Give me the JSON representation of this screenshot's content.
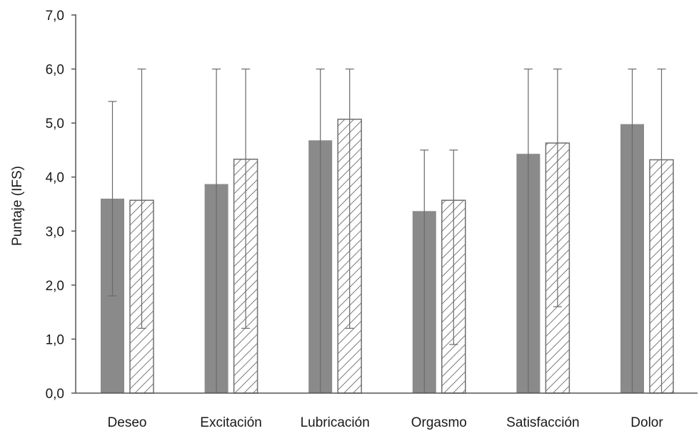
{
  "chart_data": {
    "type": "bar",
    "title": "",
    "xlabel": "",
    "ylabel": "Puntaje (IFS)",
    "ylim": [
      0,
      7
    ],
    "yticks": [
      "0,0",
      "1,0",
      "2,0",
      "3,0",
      "4,0",
      "5,0",
      "6,0",
      "7,0"
    ],
    "grid": false,
    "legend": "none",
    "categories": [
      "Deseo",
      "Excitación",
      "Lubricación",
      "Orgasmo",
      "Satisfacción",
      "Dolor"
    ],
    "series": [
      {
        "style": "solid",
        "color": "#8a8a8a",
        "values": [
          3.6,
          3.87,
          4.68,
          3.37,
          4.43,
          4.98
        ],
        "error_low": [
          1.8,
          0.0,
          0.0,
          0.0,
          0.0,
          0.0
        ],
        "error_high": [
          5.4,
          6.0,
          6.0,
          4.5,
          6.0,
          6.0
        ]
      },
      {
        "style": "hatched",
        "color": "#ffffff",
        "values": [
          3.57,
          4.33,
          5.07,
          3.57,
          4.63,
          4.32
        ],
        "error_low": [
          1.2,
          1.2,
          1.2,
          0.9,
          1.6,
          0.0
        ],
        "error_high": [
          6.0,
          6.0,
          6.0,
          4.5,
          6.0,
          6.0
        ]
      }
    ]
  }
}
